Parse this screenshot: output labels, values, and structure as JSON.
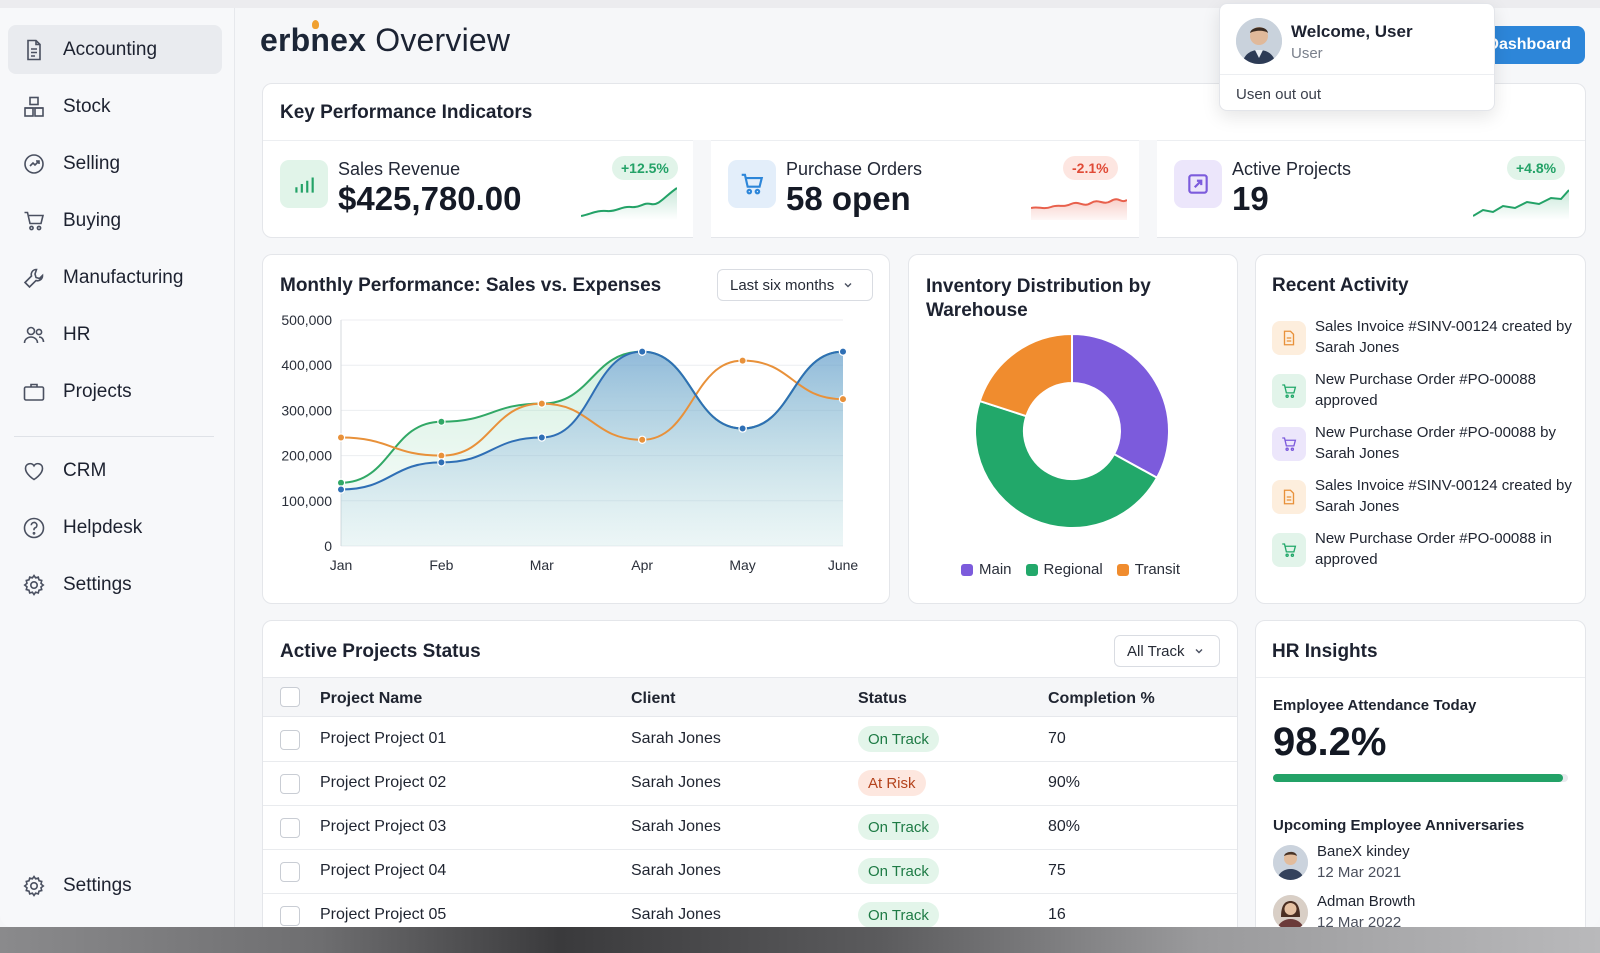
{
  "brand": {
    "name": "erbnex",
    "title": "Overview"
  },
  "header": {
    "dashboard_button": "Dashboard"
  },
  "user_menu": {
    "welcome": "Welcome, User",
    "role": "User",
    "signout": "Usen out out"
  },
  "sidebar": {
    "items": [
      {
        "label": "Accounting",
        "icon": "document-icon",
        "active": true
      },
      {
        "label": "Stock",
        "icon": "boxes-icon"
      },
      {
        "label": "Selling",
        "icon": "tag-icon"
      },
      {
        "label": "Buying",
        "icon": "cart-icon"
      },
      {
        "label": "Manufacturing",
        "icon": "wrench-icon"
      },
      {
        "label": "HR",
        "icon": "people-icon"
      },
      {
        "label": "Projects",
        "icon": "briefcase-icon"
      },
      {
        "label": "CRM",
        "icon": "heart-icon"
      },
      {
        "label": "Helpdesk",
        "icon": "help-icon"
      },
      {
        "label": "Settings",
        "icon": "gear-icon"
      }
    ],
    "footer_settings": "Settings"
  },
  "kpi": {
    "title": "Key Performance Indicators",
    "items": [
      {
        "label": "Sales Revenue",
        "value": "$425,780.00",
        "change": "+12.5%",
        "trend": "up",
        "color": "#23a267",
        "icon": "bar-chart-icon"
      },
      {
        "label": "Purchase Orders",
        "value": "58 open",
        "change": "-2.1%",
        "trend": "down",
        "color": "#e8604c",
        "icon": "cart-icon"
      },
      {
        "label": "Active Projects",
        "value": "19",
        "change": "+4.8%",
        "trend": "up",
        "color": "#23a267",
        "icon": "external-link-icon"
      }
    ]
  },
  "performance": {
    "title": "Monthly Performance: Sales vs. Expenses",
    "range": "Last six months"
  },
  "chart_data": [
    {
      "type": "area",
      "categories": [
        "Jan",
        "Feb",
        "Mar",
        "Apr",
        "May",
        "June"
      ],
      "ylim": [
        0,
        500000
      ],
      "yticks": [
        "0",
        "100,000",
        "200,000",
        "300,000",
        "400,000",
        "500,000"
      ],
      "series": [
        {
          "values": [
            125000,
            185000,
            240000,
            430000,
            260000,
            430000
          ],
          "color": "#2f6fb5"
        },
        {
          "values": [
            240000,
            200000,
            315000,
            235000,
            410000,
            325000
          ],
          "color": "#e8913a"
        },
        {
          "values": [
            140000,
            275000,
            315000,
            430000,
            260000,
            430000
          ],
          "color": "#31a866"
        }
      ],
      "grid": true
    },
    {
      "type": "pie",
      "title": "Inventory Distribution by Warehouse",
      "categories": [
        "Main",
        "Regional",
        "Transit"
      ],
      "values": [
        33,
        47,
        20
      ],
      "colors": [
        "#7c5bdc",
        "#22a86a",
        "#f08c2e"
      ]
    }
  ],
  "recent": {
    "title": "Recent Activity",
    "items": [
      {
        "text": "Sales Invoice #SINV-00124 created by Sarah Jones",
        "icon": "invoice-icon",
        "bg": "#fdeedd",
        "stroke": "#e8913a"
      },
      {
        "text": "New Purchase Order #PO-00088 approved",
        "icon": "cart-icon",
        "bg": "#e2f4ea",
        "stroke": "#22a86a"
      },
      {
        "text": "New Purchase Order #PO-00088 by Sarah Jones",
        "icon": "cart-icon",
        "bg": "#ece6fb",
        "stroke": "#7c5bdc"
      },
      {
        "text": "Sales Invoice #SINV-00124 created by Sarah Jones",
        "icon": "invoice-icon",
        "bg": "#fdeedd",
        "stroke": "#e8913a"
      },
      {
        "text": "New Purchase Order #PO-00088 in approved",
        "icon": "cart-icon",
        "bg": "#e2f4ea",
        "stroke": "#22a86a"
      }
    ]
  },
  "projects": {
    "title": "Active Projects Status",
    "filter": "All Track",
    "columns": [
      "Project Name",
      "Client",
      "Status",
      "Completion %"
    ],
    "rows": [
      {
        "name": "Project Project 01",
        "client": "Sarah Jones",
        "status": "On Track",
        "kind": "ok",
        "completion": "70"
      },
      {
        "name": "Project Project 02",
        "client": "Sarah Jones",
        "status": "At Risk",
        "kind": "risk",
        "completion": "90%"
      },
      {
        "name": "Project Project 03",
        "client": "Sarah Jones",
        "status": "On Track",
        "kind": "ok",
        "completion": "80%"
      },
      {
        "name": "Project Project 04",
        "client": "Sarah Jones",
        "status": "On Track",
        "kind": "ok",
        "completion": "75"
      },
      {
        "name": "Project Project 05",
        "client": "Sarah Jones",
        "status": "On Track",
        "kind": "ok",
        "completion": "16"
      }
    ]
  },
  "hr": {
    "title": "HR Insights",
    "attendance_label": "Employee Attendance Today",
    "attendance_value": "98.2%",
    "attendance_fraction": 0.982,
    "anniversaries_label": "Upcoming Employee Anniversaries",
    "employees": [
      {
        "name": "BaneX kindey",
        "date": "12 Mar 2021"
      },
      {
        "name": "Adman Browth",
        "date": "12 Mar 2022"
      }
    ]
  }
}
